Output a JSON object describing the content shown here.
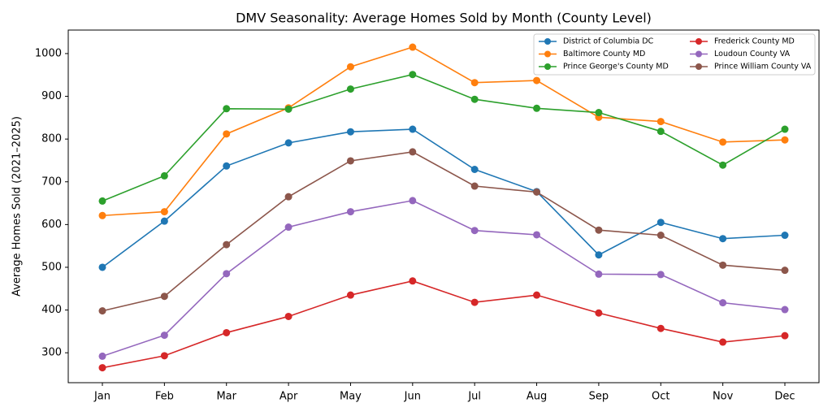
{
  "chart_data": {
    "type": "line",
    "title": "DMV Seasonality: Average Homes Sold by Month (County Level)",
    "y_label": "Average Homes Sold (2021–2025)",
    "categories": [
      "Jan",
      "Feb",
      "Mar",
      "Apr",
      "May",
      "Jun",
      "Jul",
      "Aug",
      "Sep",
      "Oct",
      "Nov",
      "Dec"
    ],
    "ylim": [
      230,
      1055
    ],
    "yticks": [
      300,
      400,
      500,
      600,
      700,
      800,
      900,
      1000
    ],
    "grid": false,
    "legend": "upper right",
    "series": [
      {
        "name": "District of Columbia DC",
        "color": "#1f77b4",
        "values": [
          500,
          608,
          737,
          791,
          817,
          823,
          729,
          677,
          529,
          605,
          567,
          575
        ]
      },
      {
        "name": "Baltimore County MD",
        "color": "#ff7f0e",
        "values": [
          621,
          630,
          812,
          873,
          969,
          1015,
          932,
          937,
          851,
          841,
          793,
          798
        ]
      },
      {
        "name": "Prince George's County MD",
        "color": "#2ca02c",
        "values": [
          655,
          714,
          871,
          870,
          917,
          951,
          893,
          872,
          862,
          818,
          739,
          823
        ]
      },
      {
        "name": "Frederick County MD",
        "color": "#d62728",
        "values": [
          265,
          293,
          347,
          385,
          435,
          468,
          418,
          435,
          393,
          357,
          325,
          340
        ]
      },
      {
        "name": "Loudoun County VA",
        "color": "#9467bd",
        "values": [
          292,
          341,
          485,
          594,
          630,
          656,
          586,
          576,
          484,
          483,
          417,
          401
        ]
      },
      {
        "name": "Prince William County VA",
        "color": "#8c564b",
        "values": [
          398,
          432,
          553,
          665,
          749,
          770,
          690,
          676,
          587,
          575,
          505,
          493
        ]
      }
    ]
  }
}
